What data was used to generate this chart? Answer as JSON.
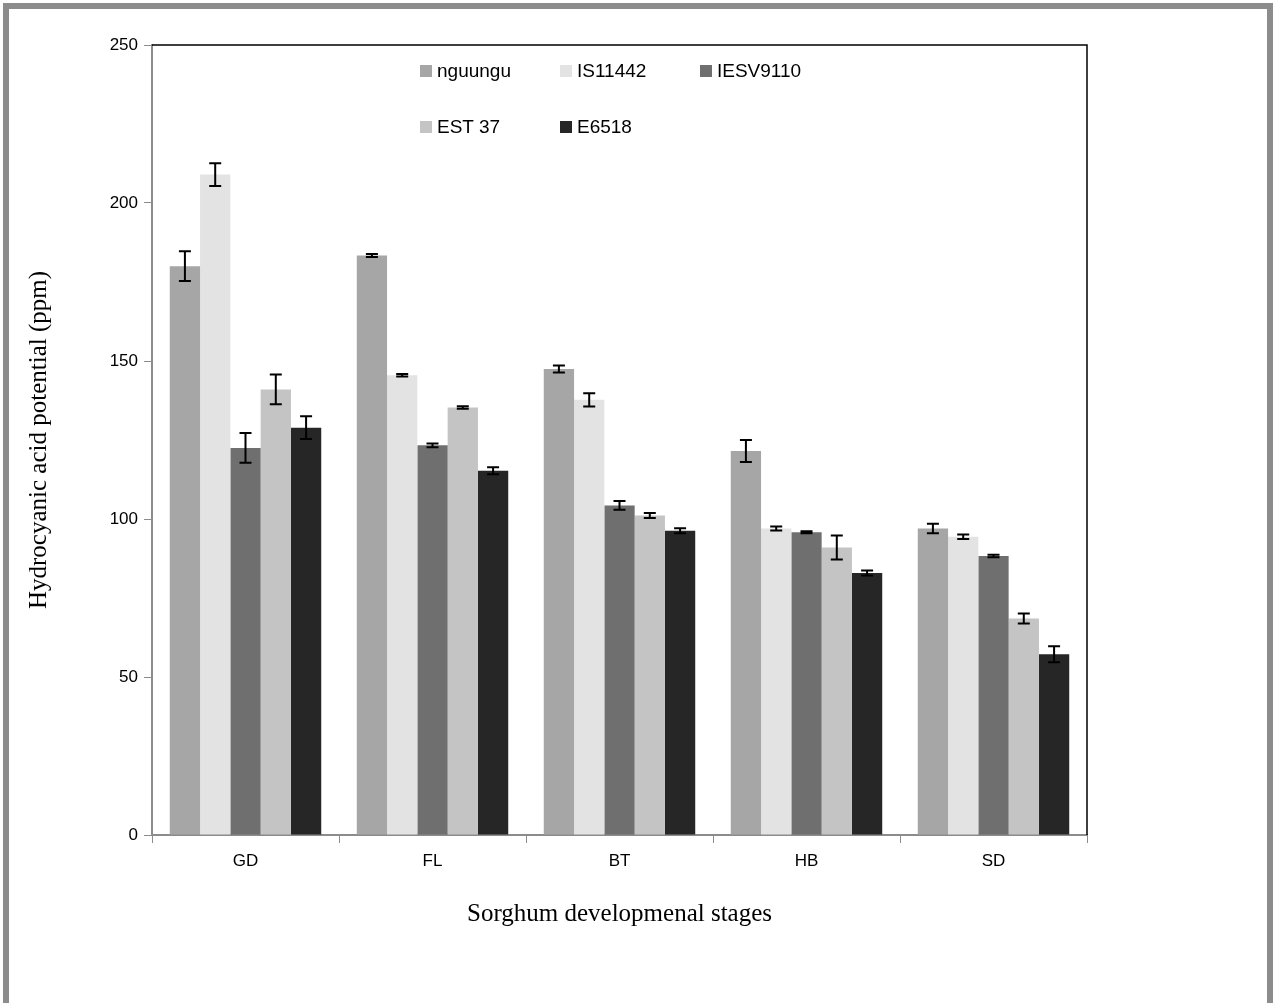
{
  "chart_data": {
    "type": "bar",
    "xlabel": "Sorghum developmenal stages",
    "ylabel": "Hydrocyanic acid potential (ppm)",
    "categories": [
      "GD",
      "FL",
      "BT",
      "HB",
      "SD"
    ],
    "series": [
      {
        "name": "nguungu",
        "color": "#a6a6a6",
        "values": [
          180,
          183.4,
          147.5,
          121.5,
          97
        ],
        "errors": [
          4.7,
          0.5,
          1.1,
          3.5,
          1.5
        ]
      },
      {
        "name": "IS11442",
        "color": "#e3e3e3",
        "values": [
          209,
          145.5,
          137.7,
          97,
          94.4
        ],
        "errors": [
          3.6,
          0.4,
          2.1,
          0.6,
          0.7
        ]
      },
      {
        "name": "IESV9110",
        "color": "#6f6f6f",
        "values": [
          122.5,
          123.3,
          104.3,
          95.8,
          88.3
        ],
        "errors": [
          4.7,
          0.6,
          1.4,
          0.3,
          0.4
        ]
      },
      {
        "name": "EST 37",
        "color": "#c4c4c4",
        "values": [
          141,
          135.3,
          101.1,
          91,
          68.5
        ],
        "errors": [
          4.7,
          0.4,
          0.8,
          3.8,
          1.6
        ]
      },
      {
        "name": "E6518",
        "color": "#262626",
        "values": [
          128.9,
          115.3,
          96.3,
          82.9,
          57.2
        ],
        "errors": [
          3.6,
          1.1,
          0.8,
          0.8,
          2.5
        ]
      }
    ],
    "ylim": [
      0,
      250
    ],
    "yticks": [
      0,
      50,
      100,
      150,
      200,
      250
    ],
    "legend": "top"
  }
}
